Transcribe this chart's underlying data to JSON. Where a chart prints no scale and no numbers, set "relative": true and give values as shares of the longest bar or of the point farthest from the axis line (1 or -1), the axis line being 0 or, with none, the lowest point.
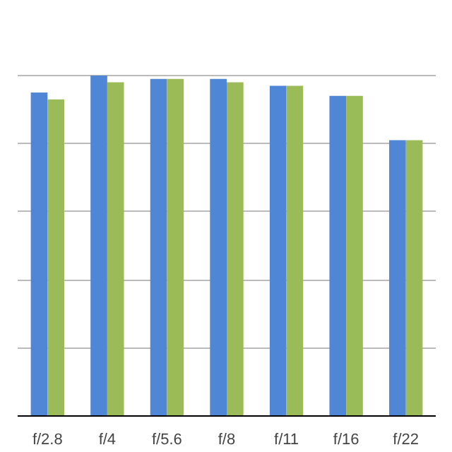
{
  "chart_data": {
    "type": "bar",
    "relative": true,
    "grid": "y",
    "categories": [
      "f/2.8",
      "f/4",
      "f/5.6",
      "f/8",
      "f/11",
      "f/16",
      "f/22"
    ],
    "series": [
      {
        "color": "#4f86d6",
        "values": [
          0.95,
          1,
          0.99,
          0.99,
          0.97,
          0.94,
          0.81
        ]
      },
      {
        "color": "#9bbb59",
        "values": [
          0.93,
          0.98,
          0.99,
          0.98,
          0.97,
          0.94,
          0.81
        ]
      }
    ]
  }
}
